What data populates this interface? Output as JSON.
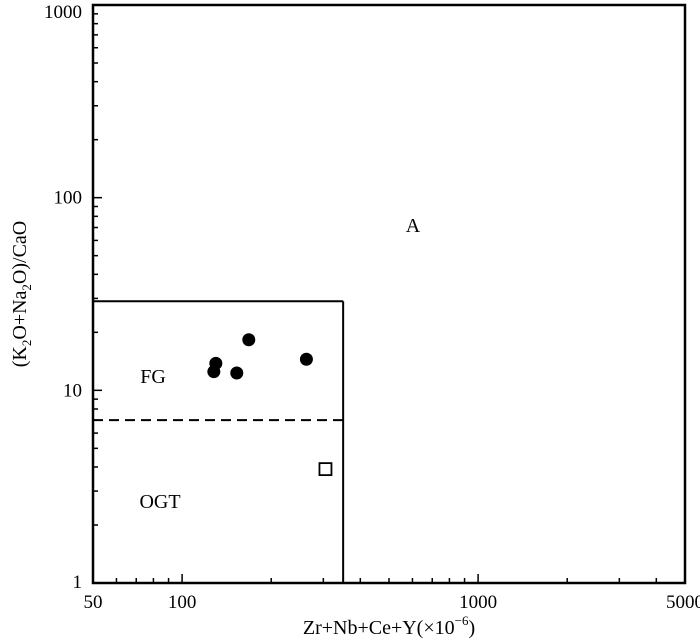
{
  "chart_data": {
    "type": "scatter",
    "x_scale": "log",
    "y_scale": "log",
    "xlim": [
      50,
      5000
    ],
    "ylim": [
      1,
      1000
    ],
    "x_ticks": [
      {
        "value": 50,
        "label": "50"
      },
      {
        "value": 100,
        "label": "100"
      },
      {
        "value": 1000,
        "label": "1000"
      },
      {
        "value": 5000,
        "label": "5000"
      }
    ],
    "y_ticks": [
      {
        "value": 1,
        "label": "1"
      },
      {
        "value": 10,
        "label": "10"
      },
      {
        "value": 100,
        "label": "100"
      },
      {
        "value": 1000,
        "label": "1000"
      }
    ],
    "xlabel": {
      "prefix": "Zr+Nb+Ce+Y(×10",
      "exponent": "−6",
      "suffix": ")"
    },
    "ylabel": {
      "part1": "(K",
      "sub1": "2",
      "part2": "O+Na",
      "sub2": "2",
      "part3": "O)/CaO"
    },
    "grid": false,
    "fields": {
      "A": "A",
      "FG": "FG",
      "OGT": "OGT"
    },
    "boundaries": {
      "box_x_max": 350,
      "box_y_max": 29,
      "dashed_y": 7
    },
    "series": [
      {
        "marker": "filled-circle",
        "points": [
          {
            "x": 128,
            "y": 12.5
          },
          {
            "x": 130,
            "y": 13.8
          },
          {
            "x": 153,
            "y": 12.3
          },
          {
            "x": 168,
            "y": 18.3
          },
          {
            "x": 263,
            "y": 14.5
          }
        ]
      },
      {
        "marker": "open-square",
        "points": [
          {
            "x": 305,
            "y": 3.9
          }
        ]
      }
    ]
  }
}
